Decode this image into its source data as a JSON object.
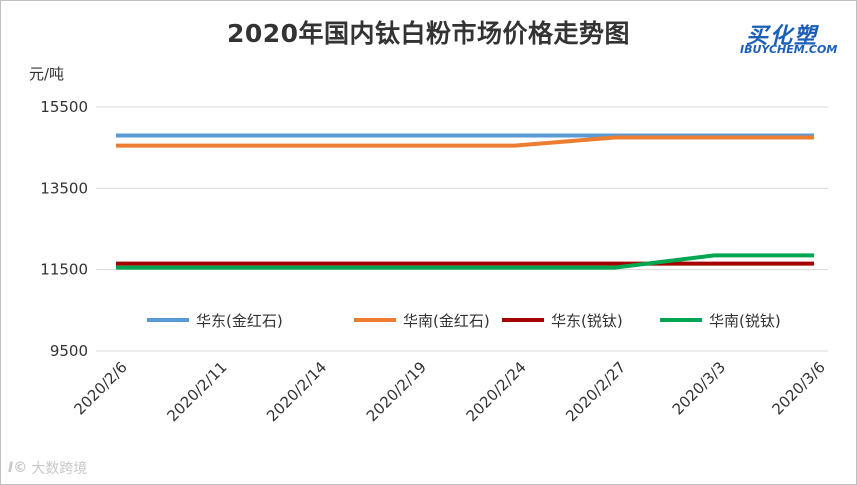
{
  "chart_data": {
    "type": "line",
    "title": "2020年国内钛白粉市场价格走势图",
    "ylabel": "元/吨",
    "ylim": [
      9500,
      15500
    ],
    "yticks": [
      9500,
      11500,
      13500,
      15500
    ],
    "grid": true,
    "legend_position": "inside-lower-middle",
    "categories": [
      "2020/2/6",
      "2020/2/11",
      "2020/2/14",
      "2020/2/19",
      "2020/2/24",
      "2020/2/27",
      "2020/3/3",
      "2020/3/6"
    ],
    "series": [
      {
        "name": "华东(金红石)",
        "color": "#5b9bd5",
        "values": [
          14800,
          14800,
          14800,
          14800,
          14800,
          14800,
          14800,
          14800
        ]
      },
      {
        "name": "华南(金红石)",
        "color": "#ed7d31",
        "values": [
          14550,
          14550,
          14550,
          14550,
          14550,
          14750,
          14750,
          14750
        ]
      },
      {
        "name": "华东(锐钛)",
        "color": "#a50000",
        "values": [
          11650,
          11650,
          11650,
          11650,
          11650,
          11650,
          11650,
          11650
        ]
      },
      {
        "name": "华南(锐钛)",
        "color": "#00a650",
        "values": [
          11550,
          11550,
          11550,
          11550,
          11550,
          11550,
          11850,
          11850
        ]
      }
    ]
  },
  "logo": {
    "cn": "买化塑",
    "en": "IBUYCHEM.COM"
  },
  "watermark": {
    "text": "大数跨境"
  }
}
